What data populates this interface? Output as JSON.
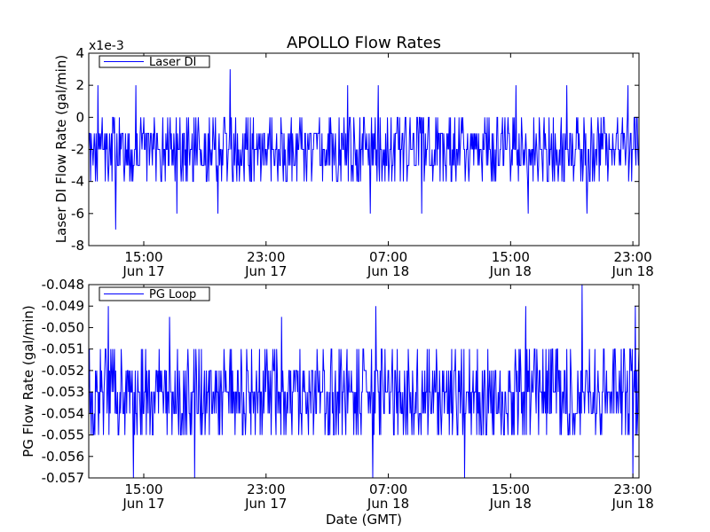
{
  "title": "APOLLO Flow Rates",
  "xlabel": "Date (GMT)",
  "chart_data": [
    {
      "type": "line",
      "title": "APOLLO Flow Rates",
      "ylabel": "Laser DI Flow Rate (gal/min)",
      "scale_label": "x1e-3",
      "ylim": [
        -8,
        4
      ],
      "yticks": [
        "-8",
        "-6",
        "-4",
        "-2",
        "0",
        "2",
        "4"
      ],
      "xticks": [
        {
          "time": "15:00",
          "date": "Jun 17"
        },
        {
          "time": "23:00",
          "date": "Jun 17"
        },
        {
          "time": "07:00",
          "date": "Jun 18"
        },
        {
          "time": "15:00",
          "date": "Jun 18"
        },
        {
          "time": "23:00",
          "date": "Jun 18"
        }
      ],
      "xlim": [
        "Jun 17 11:24",
        "Jun 18 23:24"
      ],
      "legend": "top-left",
      "grid": false,
      "series": [
        {
          "name": "Laser DI",
          "color": "#0000ff",
          "typical_range": [
            -4,
            0
          ],
          "baseline": -2,
          "peaks": [
            {
              "time": "Jun 17 12:00",
              "value": 2
            },
            {
              "time": "Jun 17 14:30",
              "value": 2
            },
            {
              "time": "Jun 17 20:40",
              "value": 3
            },
            {
              "time": "Jun 18 04:20",
              "value": 2
            },
            {
              "time": "Jun 18 06:20",
              "value": 2
            },
            {
              "time": "Jun 18 15:20",
              "value": 2
            },
            {
              "time": "Jun 18 18:40",
              "value": 2
            },
            {
              "time": "Jun 18 22:40",
              "value": 2
            }
          ],
          "troughs": [
            {
              "time": "Jun 17 13:10",
              "value": -7
            },
            {
              "time": "Jun 17 17:10",
              "value": -6
            },
            {
              "time": "Jun 17 19:50",
              "value": -6
            },
            {
              "time": "Jun 18 05:50",
              "value": -6
            },
            {
              "time": "Jun 18 09:10",
              "value": -6
            },
            {
              "time": "Jun 18 16:10",
              "value": -6
            },
            {
              "time": "Jun 18 20:00",
              "value": -6
            }
          ]
        }
      ]
    },
    {
      "type": "line",
      "ylabel": "PG Flow Rate (gal/min)",
      "ylim": [
        -0.057,
        -0.048
      ],
      "yticks": [
        "-0.057",
        "-0.056",
        "-0.055",
        "-0.054",
        "-0.053",
        "-0.052",
        "-0.051",
        "-0.050",
        "-0.049",
        "-0.048"
      ],
      "xticks": [
        {
          "time": "15:00",
          "date": "Jun 17"
        },
        {
          "time": "23:00",
          "date": "Jun 17"
        },
        {
          "time": "07:00",
          "date": "Jun 18"
        },
        {
          "time": "15:00",
          "date": "Jun 18"
        },
        {
          "time": "23:00",
          "date": "Jun 18"
        }
      ],
      "xlim": [
        "Jun 17 11:24",
        "Jun 18 23:24"
      ],
      "legend": "top-left",
      "grid": false,
      "series": [
        {
          "name": "PG Loop",
          "color": "#0000ff",
          "typical_range": [
            -0.055,
            -0.051
          ],
          "baseline": -0.053,
          "peaks": [
            {
              "time": "Jun 17 12:40",
              "value": -0.049
            },
            {
              "time": "Jun 17 16:40",
              "value": -0.0495
            },
            {
              "time": "Jun 18 00:00",
              "value": -0.0495
            },
            {
              "time": "Jun 18 06:10",
              "value": -0.049
            },
            {
              "time": "Jun 18 16:00",
              "value": -0.049
            },
            {
              "time": "Jun 18 19:40",
              "value": -0.048
            },
            {
              "time": "Jun 18 23:10",
              "value": -0.049
            }
          ],
          "troughs": [
            {
              "time": "Jun 17 14:20",
              "value": -0.057
            },
            {
              "time": "Jun 17 18:20",
              "value": -0.057
            },
            {
              "time": "Jun 18 06:00",
              "value": -0.057
            },
            {
              "time": "Jun 18 12:00",
              "value": -0.057
            },
            {
              "time": "Jun 18 23:00",
              "value": -0.057
            }
          ]
        }
      ]
    }
  ]
}
